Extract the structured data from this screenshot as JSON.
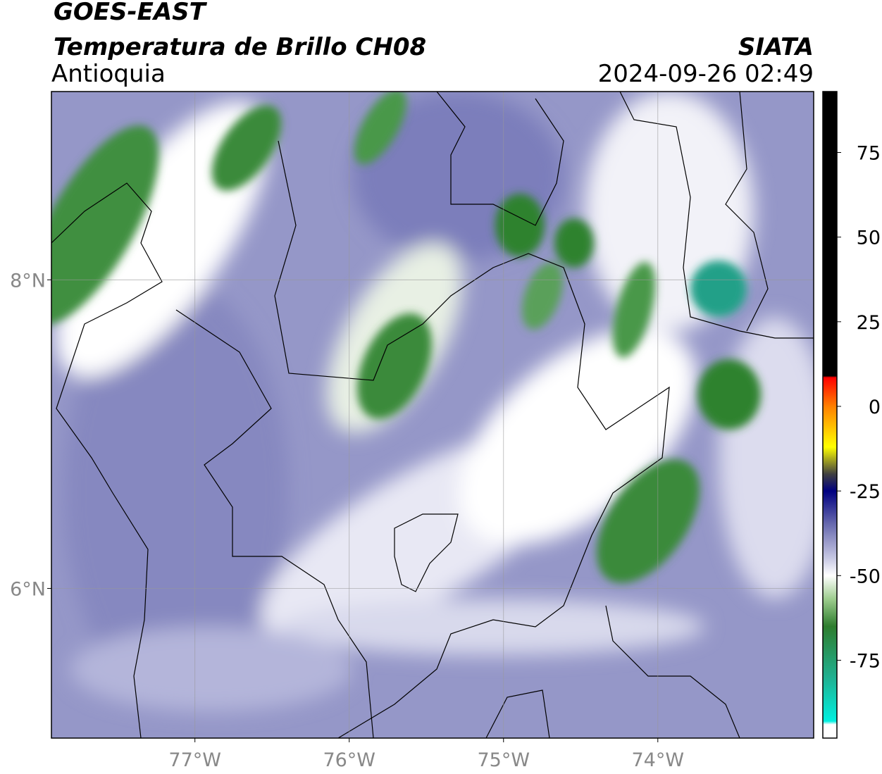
{
  "header": {
    "line1": "GOES-EAST",
    "title": "Temperatura de Brillo CH08",
    "region": "Antioquia",
    "source": "SIATA",
    "datetime": "2024-09-26 02:49"
  },
  "map": {
    "xlim": [
      -77.93,
      -72.99
    ],
    "ylim": [
      5.03,
      9.22
    ],
    "xticks": [
      {
        "value": -77,
        "label": "77°W"
      },
      {
        "value": -76,
        "label": "76°W"
      },
      {
        "value": -75,
        "label": "75°W"
      },
      {
        "value": -74,
        "label": "74°W"
      }
    ],
    "yticks": [
      {
        "value": 6,
        "label": "6°N"
      },
      {
        "value": 8,
        "label": "8°N"
      }
    ],
    "grid": true
  },
  "colorbar": {
    "clim": [
      -98,
      93
    ],
    "ticks": [
      75,
      50,
      25,
      0,
      -25,
      -50,
      -75
    ],
    "stops": [
      {
        "value": 93,
        "color": "#000000"
      },
      {
        "value": 9,
        "color": "#000000"
      },
      {
        "value": 8.5,
        "color": "#ff0000"
      },
      {
        "value": 0,
        "color": "#ff8000"
      },
      {
        "value": -12,
        "color": "#ffff00"
      },
      {
        "value": -20,
        "color": "#404040"
      },
      {
        "value": -25,
        "color": "#000080"
      },
      {
        "value": -35,
        "color": "#6a6cb0"
      },
      {
        "value": -45,
        "color": "#c8c9e4"
      },
      {
        "value": -50,
        "color": "#ffffff"
      },
      {
        "value": -57,
        "color": "#9ccc8c"
      },
      {
        "value": -65,
        "color": "#2e7d2e"
      },
      {
        "value": -80,
        "color": "#20b090"
      },
      {
        "value": -93,
        "color": "#00f0e0"
      },
      {
        "value": -94,
        "color": "#ffffff"
      },
      {
        "value": -98,
        "color": "#ffffff"
      }
    ]
  }
}
